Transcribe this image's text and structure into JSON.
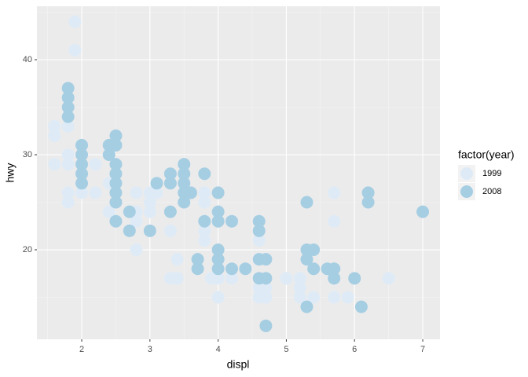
{
  "chart_data": {
    "type": "scatter",
    "x_label": "displ",
    "y_label": "hwy",
    "legend_title": "factor(year)",
    "xlim": [
      1.343,
      7.253
    ],
    "ylim": [
      10.58,
      45.62
    ],
    "xticks": [
      2,
      3,
      4,
      5,
      6,
      7
    ],
    "yticks": [
      20,
      30,
      40
    ],
    "grid": true,
    "legend_position": "right",
    "series": [
      {
        "name": "1999",
        "color": "#deebf7",
        "x": [
          1.9,
          1.9,
          1.6,
          1.6,
          1.6,
          1.8,
          1.8,
          1.8,
          1.8,
          1.8,
          2.0,
          2.0,
          2.2,
          2.2,
          2.4,
          2.4,
          2.5,
          2.8,
          2.8,
          2.8,
          2.8,
          3.0,
          3.0,
          3.0,
          3.1,
          3.3,
          3.3,
          3.4,
          3.4,
          3.8,
          3.8,
          3.8,
          3.8,
          3.9,
          4.0,
          4.0,
          4.2,
          4.6,
          4.6,
          4.6,
          4.7,
          4.7,
          5.0,
          5.2,
          5.2,
          5.2,
          5.4,
          5.7,
          5.7,
          5.7,
          5.9,
          6.5
        ],
        "y": [
          44,
          41,
          33,
          32,
          29,
          33,
          30,
          29,
          26,
          25,
          26,
          29,
          26,
          29,
          27,
          24,
          26,
          26,
          24,
          20,
          23,
          26,
          25,
          24,
          26,
          22,
          17,
          19,
          17,
          26,
          25,
          22,
          21,
          17,
          17,
          15,
          17,
          21,
          16,
          15,
          15,
          16,
          17,
          17,
          16,
          15,
          15,
          26,
          23,
          15,
          15,
          17
        ]
      },
      {
        "name": "2008",
        "color": "#a6cee3",
        "x": [
          1.8,
          1.8,
          1.8,
          1.8,
          2.0,
          2.0,
          2.0,
          2.0,
          2.0,
          2.4,
          2.4,
          2.5,
          2.5,
          2.5,
          2.5,
          2.5,
          2.5,
          2.5,
          2.5,
          2.7,
          2.7,
          3.0,
          3.1,
          3.3,
          3.3,
          3.3,
          3.5,
          3.5,
          3.5,
          3.5,
          3.5,
          3.6,
          3.7,
          3.7,
          3.8,
          3.8,
          4.0,
          4.0,
          4.0,
          4.0,
          4.0,
          4.0,
          4.2,
          4.2,
          4.4,
          4.6,
          4.6,
          4.6,
          4.6,
          4.7,
          4.7,
          4.7,
          5.3,
          5.3,
          5.3,
          5.3,
          5.4,
          5.4,
          5.6,
          5.7,
          5.7,
          6.0,
          6.1,
          6.2,
          6.2,
          7.0
        ],
        "y": [
          37,
          36,
          35,
          34,
          31,
          30,
          29,
          28,
          27,
          31,
          30,
          32,
          31,
          29,
          28,
          27,
          25,
          23,
          26,
          24,
          22,
          22,
          27,
          28,
          27,
          24,
          29,
          28,
          27,
          26,
          25,
          26,
          19,
          18,
          28,
          23,
          26,
          24,
          23,
          20,
          19,
          18,
          23,
          18,
          18,
          23,
          22,
          19,
          17,
          19,
          17,
          12,
          25,
          20,
          19,
          14,
          20,
          18,
          18,
          18,
          17,
          17,
          14,
          26,
          25,
          24
        ]
      }
    ]
  }
}
